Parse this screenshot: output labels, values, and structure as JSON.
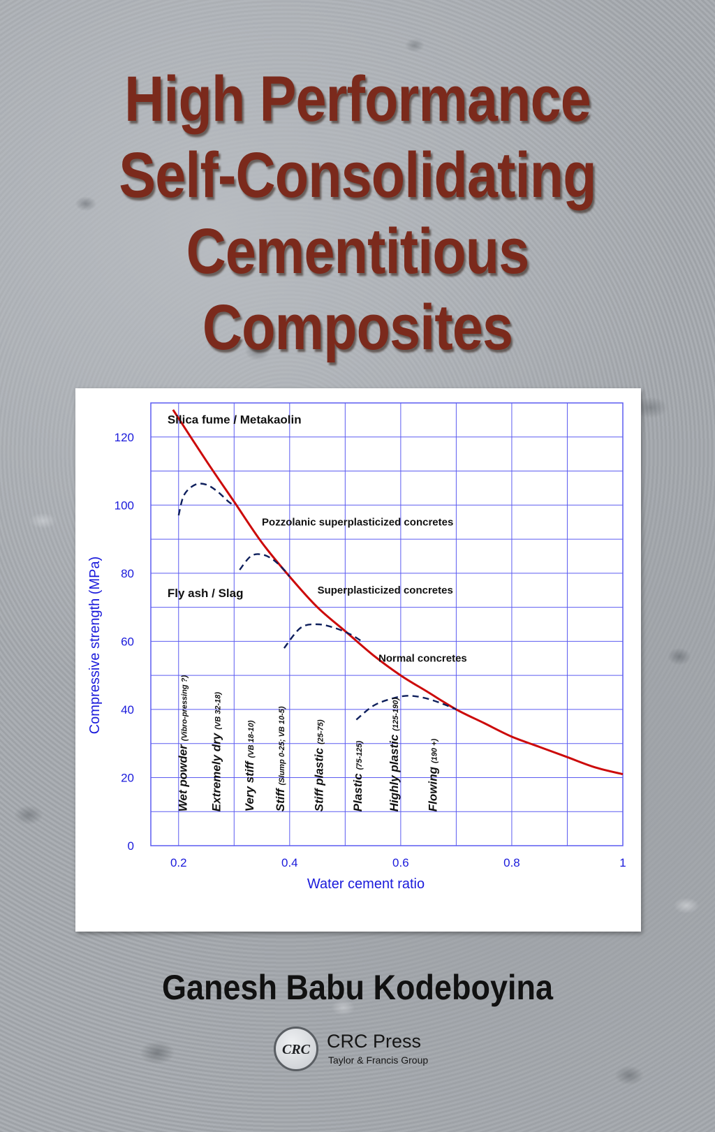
{
  "title_lines": [
    "High Performance",
    "Self-Consolidating",
    "Cementitious",
    "Composites"
  ],
  "author": "Ganesh Babu Kodeboyina",
  "publisher": {
    "logo_text": "CRC",
    "name": "CRC Press",
    "subtitle": "Taylor & Francis Group"
  },
  "colors": {
    "title": "#7b2a1c",
    "axis_text": "#1a1adb",
    "grid": "#5b5bf0",
    "strength_curve": "#cc0a0a",
    "dashed_curves": "#0e1f5c"
  },
  "chart_data": {
    "type": "line",
    "xlabel": "Water cement ratio",
    "ylabel": "Compressive strength (MPa)",
    "xlim": [
      0.15,
      1.0
    ],
    "ylim": [
      0,
      130
    ],
    "xticks": [
      0.2,
      0.4,
      0.6,
      0.8,
      1
    ],
    "xtick_labels": [
      "0.2",
      "0.4",
      "0.6",
      "0.8",
      "1"
    ],
    "yticks": [
      0,
      20,
      40,
      60,
      80,
      100,
      120
    ],
    "ytick_labels": [
      "0",
      "20",
      "40",
      "60",
      "80",
      "100",
      "120"
    ],
    "grid": true,
    "series": [
      {
        "style": "solid",
        "x": [
          0.19,
          0.25,
          0.3,
          0.35,
          0.4,
          0.45,
          0.5,
          0.55,
          0.6,
          0.65,
          0.7,
          0.75,
          0.8,
          0.85,
          0.9,
          0.95,
          1.0
        ],
        "y": [
          128,
          113,
          101,
          89,
          79,
          70,
          63,
          56,
          50,
          45,
          40,
          36,
          32,
          29,
          26,
          23,
          21
        ]
      },
      {
        "style": "dashed",
        "x": [
          0.2,
          0.21,
          0.23,
          0.25,
          0.27,
          0.29,
          0.3
        ],
        "y": [
          97,
          103,
          106,
          106,
          104,
          101,
          100
        ]
      },
      {
        "style": "dashed",
        "x": [
          0.31,
          0.33,
          0.35,
          0.37,
          0.39,
          0.4
        ],
        "y": [
          81,
          85,
          85.5,
          84,
          81,
          79
        ]
      },
      {
        "style": "dashed",
        "x": [
          0.39,
          0.42,
          0.45,
          0.48,
          0.51,
          0.53
        ],
        "y": [
          58,
          64,
          65,
          64,
          62,
          60
        ]
      },
      {
        "style": "dashed",
        "x": [
          0.52,
          0.55,
          0.58,
          0.61,
          0.64,
          0.67,
          0.7
        ],
        "y": [
          37,
          41,
          43,
          44,
          43.5,
          42,
          40
        ]
      }
    ],
    "annotations": [
      {
        "text": "Silica fume / Metakaolin",
        "x": 0.18,
        "y": 124,
        "bold": true,
        "size": 17
      },
      {
        "text": "Pozzolanic superplasticized concretes",
        "x": 0.35,
        "y": 94,
        "bold": true,
        "size": 15
      },
      {
        "text": "Fly ash / Slag",
        "x": 0.18,
        "y": 73,
        "bold": true,
        "size": 17
      },
      {
        "text": "Superplasticized concretes",
        "x": 0.45,
        "y": 74,
        "bold": true,
        "size": 15
      },
      {
        "text": "Normal concretes",
        "x": 0.56,
        "y": 54,
        "bold": true,
        "size": 15
      }
    ],
    "workability_labels": [
      {
        "main": "Wet powder",
        "detail": "(Vibro-pressing ?)",
        "x": 0.215
      },
      {
        "main": "Extremely dry",
        "detail": "(VB 32-18)",
        "x": 0.275
      },
      {
        "main": "Very stiff",
        "detail": "(VB 18-10)",
        "x": 0.335
      },
      {
        "main": "Stiff",
        "detail": "(Slump 0-25; VB 10-5)",
        "x": 0.39
      },
      {
        "main": "Stiff plastic",
        "detail": "(25-75)",
        "x": 0.46
      },
      {
        "main": "Plastic",
        "detail": "(75-125)",
        "x": 0.53
      },
      {
        "main": "Highly plastic",
        "detail": "(125-190)",
        "x": 0.595
      },
      {
        "main": "Flowing",
        "detail": "(190 +)",
        "x": 0.665
      }
    ]
  }
}
